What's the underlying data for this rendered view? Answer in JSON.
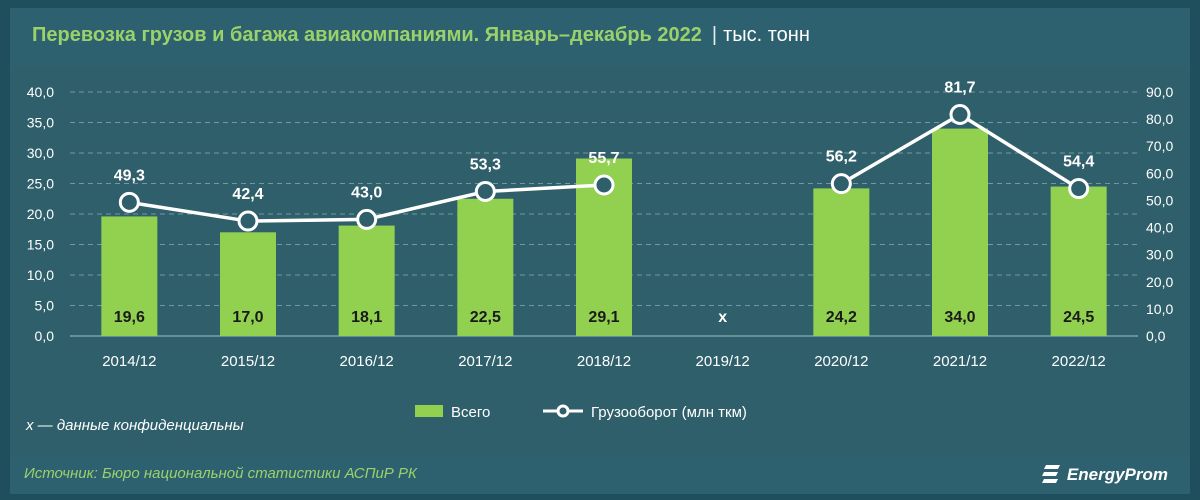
{
  "header": {
    "title": "Перевозка грузов и багажа авиакомпаниями. Январь–декабрь 2022",
    "separator": "|",
    "unit": "тыс. тонн"
  },
  "chart_data": {
    "type": "bar",
    "categories": [
      "2014/12",
      "2015/12",
      "2016/12",
      "2017/12",
      "2018/12",
      "2019/12",
      "2020/12",
      "2021/12",
      "2022/12"
    ],
    "series": [
      {
        "name": "Всего",
        "type": "bar",
        "axis": "left",
        "values": [
          19.6,
          17.0,
          18.1,
          22.5,
          29.1,
          null,
          24.2,
          34.0,
          24.5
        ],
        "labels": [
          "19,6",
          "17,0",
          "18,1",
          "22,5",
          "29,1",
          null,
          "24,2",
          "34,0",
          "24,5"
        ],
        "color": "#92d050"
      },
      {
        "name": "Грузооборот (млн ткм)",
        "type": "line",
        "axis": "right",
        "values": [
          49.3,
          42.4,
          43.0,
          53.3,
          55.7,
          null,
          56.2,
          81.7,
          54.4
        ],
        "labels": [
          "49,3",
          "42,4",
          "43,0",
          "53,3",
          "55,7",
          null,
          "56,2",
          "81,7",
          "54,4"
        ],
        "color": "#ffffff"
      }
    ],
    "confidential_marker": {
      "category": "2019/12",
      "text": "x"
    },
    "y_left": {
      "lim": [
        0,
        40
      ],
      "ticks": [
        "0,0",
        "5,0",
        "10,0",
        "15,0",
        "20,0",
        "25,0",
        "30,0",
        "35,0",
        "40,0"
      ]
    },
    "y_right": {
      "lim": [
        0,
        90
      ],
      "ticks": [
        "0,0",
        "10,0",
        "20,0",
        "30,0",
        "40,0",
        "50,0",
        "60,0",
        "70,0",
        "80,0",
        "90,0"
      ]
    },
    "grid": true,
    "legend_position": "bottom-center"
  },
  "legend": {
    "bar_label": "Всего",
    "line_label": "Грузооборот (млн ткм)"
  },
  "note": "x — данные конфиденциальны",
  "footer": {
    "source": "Источник: Бюро национальной статистики АСПиР РК",
    "logo_text": "EnergyProm"
  },
  "colors": {
    "background": "#1f4f5c",
    "panel": "#2f5f6b",
    "bar": "#92d050",
    "line": "#ffffff",
    "accent_text": "#9bd16a"
  }
}
